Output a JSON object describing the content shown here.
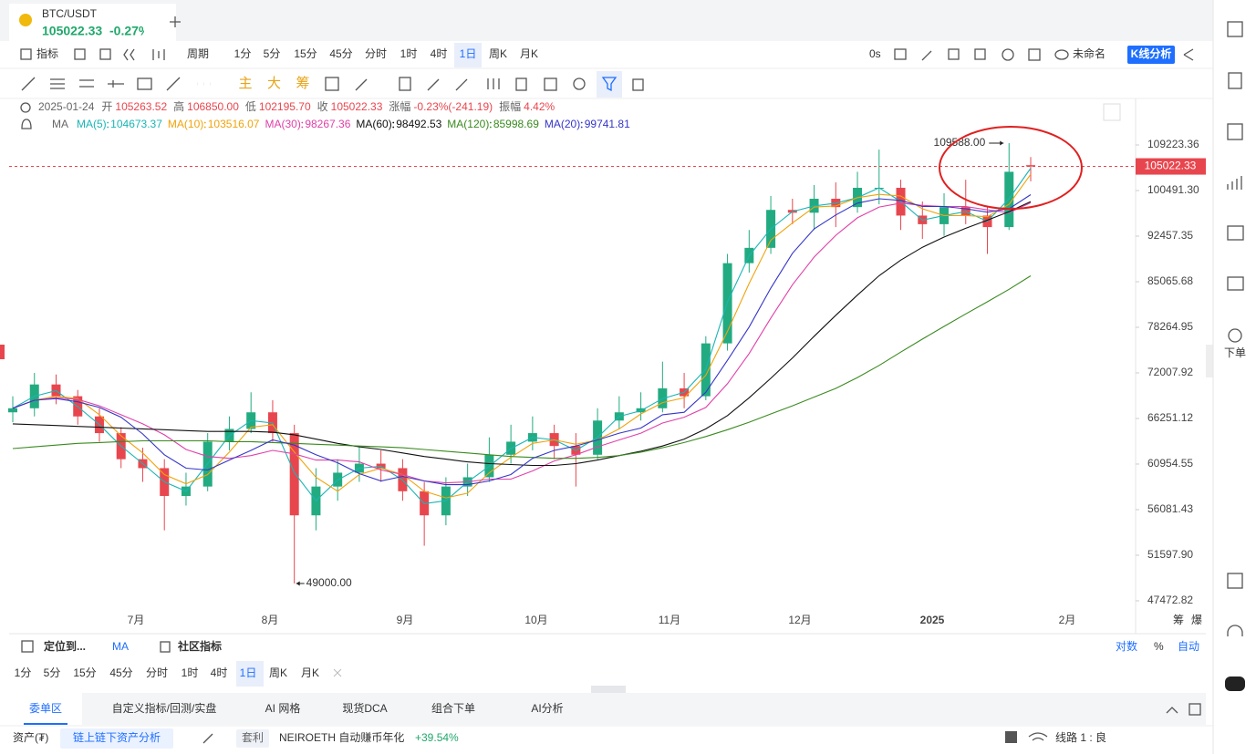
{
  "tab": {
    "symbol": "BTC/USDT",
    "price": "105022.33",
    "change": "-0.27%"
  },
  "toolbar": {
    "indicator": "指标",
    "period": "周期",
    "intervals": [
      "1分",
      "5分",
      "15分",
      "45分",
      "分时",
      "1时",
      "4时",
      "1日",
      "周K",
      "月K"
    ],
    "timer": "0s",
    "layout_name": "未命名",
    "analysis": "K线分析"
  },
  "tools": [
    "主",
    "大",
    "筹"
  ],
  "info": {
    "date": "2025-01-24",
    "open_label": "开",
    "open": "105263.52",
    "high_label": "高",
    "high": "106850.00",
    "low_label": "低",
    "low": "102195.70",
    "close_label": "收",
    "close": "105022.33",
    "change_label": "涨幅",
    "change": "-0.23%(-241.19)",
    "amplitude_label": "振幅",
    "amplitude": "4.42%"
  },
  "chart_data": {
    "type": "candlestick",
    "indicator": "MA",
    "log": true,
    "up_color": "#22ab80",
    "down_color": "#e8464e",
    "ylim": [
      45080,
      118520
    ],
    "yticks": [
      109223.36,
      {
        "value": 100491.3,
        "label": "100491.30"
      },
      92457.35,
      85065.68,
      78264.95,
      72007.92,
      66251.12,
      60954.55,
      56081.43,
      {
        "value": 51597.9,
        "label": "51597.90"
      },
      47472.82
    ],
    "x_labels": [
      "7月",
      "8月",
      "9月",
      "10月",
      "11月",
      "12月",
      "2025",
      "2月"
    ],
    "axis_corner": [
      "筹",
      "爆"
    ],
    "open": [
      67000,
      67500,
      70500,
      69000,
      66500,
      64500,
      61500,
      60500,
      57500,
      58500,
      63500,
      65000,
      67000,
      64500,
      55500,
      58500,
      60000,
      61000,
      60500,
      58000,
      55500,
      58500,
      59500,
      62000,
      63500,
      64500,
      63000,
      62000,
      66000,
      67000,
      67500,
      70000,
      69000,
      76000,
      88000,
      90500,
      97000,
      96500,
      99000,
      97500,
      101000,
      101000,
      96000,
      94500,
      97500,
      96000,
      94000,
      105263.52
    ],
    "high": [
      69000,
      72000,
      71800,
      69800,
      67500,
      65200,
      62800,
      61500,
      60000,
      64500,
      66500,
      69500,
      68500,
      65500,
      60500,
      61500,
      63000,
      62500,
      61500,
      59000,
      59500,
      61000,
      64000,
      65500,
      66500,
      65500,
      64500,
      67500,
      69000,
      69500,
      73500,
      72000,
      77000,
      89500,
      93500,
      99500,
      99000,
      101500,
      102000,
      104000,
      108300,
      102500,
      98500,
      100000,
      102500,
      97500,
      109588,
      106850
    ],
    "low": [
      65800,
      66500,
      68000,
      65500,
      63500,
      60500,
      59000,
      54000,
      56500,
      58000,
      62500,
      64500,
      63500,
      49000,
      54000,
      57000,
      59000,
      59000,
      57000,
      52500,
      54500,
      57500,
      59000,
      61000,
      62500,
      61500,
      58500,
      61500,
      65000,
      66000,
      67000,
      67500,
      68500,
      75000,
      86500,
      89500,
      94500,
      93500,
      94000,
      96500,
      98000,
      93500,
      92000,
      92500,
      94500,
      89500,
      93500,
      102195.7
    ],
    "close": [
      67500,
      70500,
      69000,
      66500,
      64500,
      61500,
      60500,
      57500,
      58500,
      63500,
      65000,
      67000,
      64500,
      55500,
      58500,
      60000,
      61000,
      60500,
      58000,
      55500,
      58500,
      59500,
      62000,
      63500,
      64500,
      63000,
      62000,
      66000,
      67000,
      67500,
      70000,
      69000,
      76000,
      88000,
      90500,
      97000,
      96500,
      99000,
      97500,
      101000,
      101000,
      96000,
      94500,
      97500,
      96000,
      94000,
      104000,
      105022.33
    ],
    "annotations": [
      {
        "value": 109588,
        "label": "109588.00"
      },
      {
        "value": 49000,
        "label": "49000.00"
      }
    ],
    "series": [
      {
        "name": "MA(5)",
        "color": "#19b5b5",
        "values": [
          67500,
          69000,
          69700,
          67700,
          65500,
          63000,
          61000,
          59000,
          58000,
          61000,
          64200,
          66000,
          65700,
          60000,
          57000,
          59200,
          60500,
          60700,
          59200,
          56700,
          57000,
          59000,
          60700,
          62700,
          64000,
          63700,
          62500,
          64000,
          66500,
          67200,
          68700,
          69500,
          72500,
          82000,
          89200,
          93700,
          96700,
          97700,
          98200,
          99200,
          101000,
          98500,
          95200,
          96000,
          96700,
          95000,
          99000,
          104673.37
        ]
      },
      {
        "name": "MA(10)",
        "color": "#f0a30a",
        "values": [
          67500,
          68500,
          69000,
          68700,
          66700,
          64200,
          62200,
          59800,
          58800,
          59800,
          62300,
          65200,
          65500,
          62300,
          59500,
          58000,
          59800,
          60500,
          59800,
          58000,
          57300,
          57800,
          60000,
          61700,
          63300,
          63700,
          63200,
          63700,
          65000,
          66800,
          68200,
          68800,
          71700,
          77700,
          84800,
          91800,
          94700,
          97500,
          97700,
          99200,
          99800,
          99500,
          97200,
          96000,
          96000,
          95800,
          98000,
          103516.07
        ]
      },
      {
        "name": "MA(30)",
        "color": "#e040a8",
        "values": [
          67500,
          68500,
          68800,
          68600,
          67800,
          66700,
          65600,
          64300,
          62600,
          61800,
          61600,
          61900,
          62500,
          62100,
          61400,
          61400,
          61200,
          60300,
          59800,
          59100,
          58900,
          59000,
          59300,
          59300,
          60200,
          61300,
          62000,
          62900,
          63700,
          64500,
          65700,
          66400,
          67600,
          70600,
          74600,
          79600,
          84600,
          89000,
          92600,
          95600,
          97500,
          98200,
          97800,
          97600,
          97600,
          97000,
          96500,
          98267.36
        ]
      },
      {
        "name": "MA(60)",
        "color": "#111111",
        "values": [
          65600,
          65500,
          65400,
          65300,
          65200,
          65100,
          65000,
          64900,
          64800,
          64700,
          64700,
          64700,
          64600,
          64300,
          63800,
          63300,
          62900,
          62600,
          62200,
          61800,
          61500,
          61200,
          61000,
          60900,
          60800,
          60800,
          61000,
          61400,
          61900,
          62400,
          63000,
          63800,
          65000,
          66600,
          68800,
          71300,
          74000,
          77000,
          80000,
          83000,
          86000,
          88500,
          90600,
          92300,
          93800,
          95200,
          96700,
          98492.53
        ]
      },
      {
        "name": "MA(120)",
        "color": "#3a8a1f",
        "values": [
          62700,
          62900,
          63100,
          63300,
          63400,
          63500,
          63600,
          63600,
          63600,
          63600,
          63500,
          63500,
          63400,
          63300,
          63200,
          63100,
          63000,
          62900,
          62800,
          62600,
          62400,
          62200,
          62000,
          61800,
          61700,
          61600,
          61600,
          61700,
          61900,
          62300,
          62800,
          63400,
          64100,
          64900,
          65800,
          66800,
          67800,
          68900,
          70000,
          71400,
          73000,
          74800,
          76600,
          78400,
          80200,
          82000,
          83900,
          85998.69
        ]
      },
      {
        "name": "MA(20)",
        "color": "#3535c8",
        "values": [
          67500,
          68500,
          68700,
          68300,
          67600,
          66400,
          64400,
          62000,
          60500,
          60300,
          61400,
          62500,
          63700,
          63100,
          62000,
          61100,
          59900,
          59100,
          59600,
          59100,
          58700,
          58700,
          59100,
          59800,
          61600,
          62500,
          63000,
          63700,
          64500,
          65100,
          66700,
          67000,
          69500,
          73700,
          78300,
          84100,
          89600,
          93700,
          96100,
          98200,
          99000,
          98700,
          97600,
          97600,
          97200,
          96600,
          97200,
          99741.81
        ]
      }
    ]
  },
  "bottom": {
    "locate": "定位到...",
    "ma": "MA",
    "community": "社区指标",
    "log": "对数",
    "percent": "%",
    "auto": "自动",
    "intervals": [
      "1分",
      "5分",
      "15分",
      "45分",
      "分时",
      "1时",
      "4时",
      "1日",
      "周K",
      "月K"
    ],
    "tabs": [
      "委单区",
      "自定义指标/回测/实盘",
      "AI 网格",
      "现货DCA",
      "组合下单",
      "AI分析"
    ]
  },
  "status": {
    "assets": "资产(₮)",
    "analysis": "链上链下资产分析",
    "arb": "套利",
    "product": "NEIROETH 自动赚币年化",
    "apy": "+39.54%",
    "line": "线路 1 : 良"
  },
  "sidebar": {
    "order": "下单"
  }
}
